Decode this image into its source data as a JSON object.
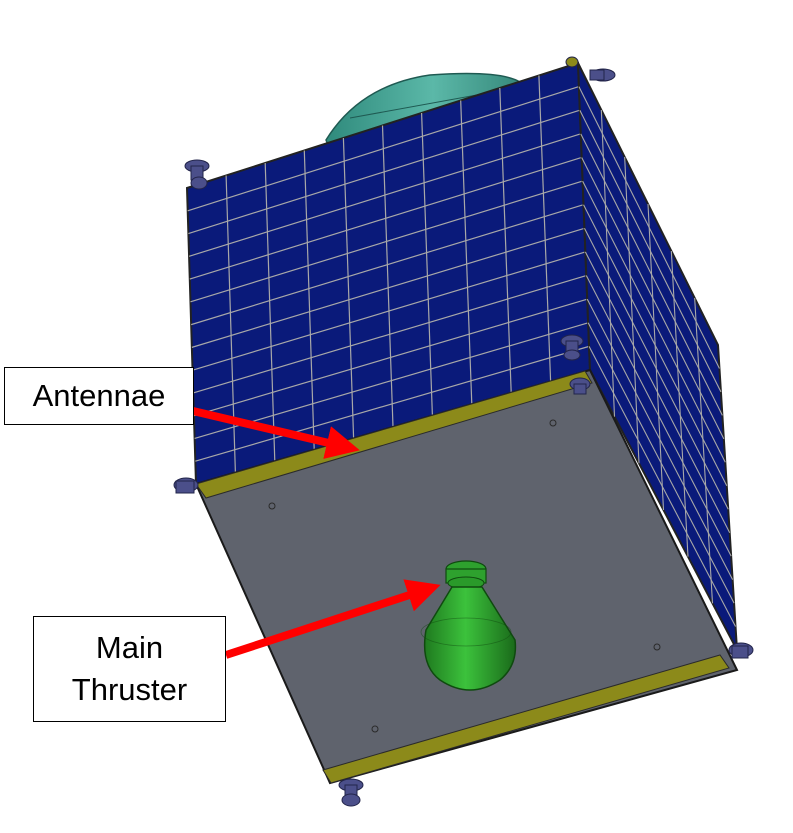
{
  "labels": {
    "antennae": "Antennae",
    "main_thruster_line1": "Main",
    "main_thruster_line2": "Thruster"
  },
  "colors": {
    "solar_panel": "#0a1a7a",
    "panel_grid": "#a8a8a8",
    "bottom_plate": "#5f636d",
    "antenna_strip": "#8c8a1a",
    "thruster": "#2ea12e",
    "dish": "#3a9a8a",
    "attitude_thrusters": "#4b4f8a",
    "arrow": "#ff0000"
  },
  "icons": {
    "satellite": "satellite-body-icon",
    "arrow": "red-arrow-icon"
  }
}
